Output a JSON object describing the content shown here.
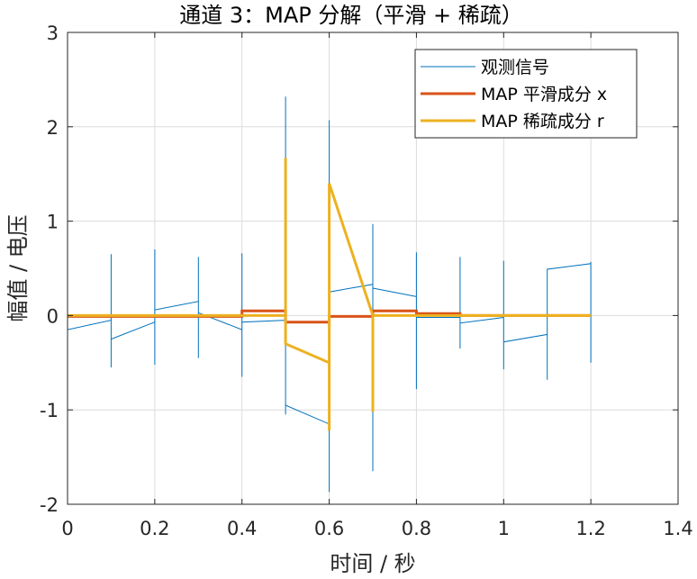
{
  "chart_data": {
    "type": "line",
    "title": "通道 3：MAP 分解（平滑 + 稀疏）",
    "xlabel": "时间 / 秒",
    "ylabel": "幅值 / 电压",
    "xlim": [
      0,
      1.4
    ],
    "ylim": [
      -2,
      3
    ],
    "xticks": [
      0,
      0.2,
      0.4,
      0.6,
      0.8,
      1,
      1.2,
      1.4
    ],
    "xtick_labels": [
      "0",
      "0.2",
      "0.4",
      "0.6",
      "0.8",
      "1",
      "1.2",
      "1.4"
    ],
    "yticks": [
      -2,
      -1,
      0,
      1,
      2,
      3
    ],
    "ytick_labels": [
      "-2",
      "-1",
      "0",
      "1",
      "2",
      "3"
    ],
    "grid": true,
    "legend_position": "top-right",
    "series": [
      {
        "name": "观测信号",
        "color": "#0072BD",
        "x": [
          0,
          0,
          0,
          0.1,
          0.1,
          0.1,
          0.1,
          0.2,
          0.2,
          0.2,
          0.2,
          0.3,
          0.3,
          0.3,
          0.3,
          0.4,
          0.4,
          0.4,
          0.4,
          0.5,
          0.5,
          0.5,
          0.5,
          0.6,
          0.6,
          0.6,
          0.6,
          0.7,
          0.7,
          0.7,
          0.7,
          0.8,
          0.8,
          0.8,
          0.8,
          0.9,
          0.9,
          0.9,
          0.9,
          1.0,
          1.0,
          1.0,
          1.0,
          1.1,
          1.1,
          1.1,
          1.1,
          1.2,
          1.2,
          1.2
        ],
        "y": [
          0.48,
          -0.68,
          -0.15,
          -0.05,
          0.65,
          -0.55,
          -0.25,
          -0.07,
          0.7,
          -0.52,
          0.06,
          0.15,
          0.62,
          -0.45,
          0.03,
          -0.15,
          0.66,
          -0.65,
          -0.07,
          -0.05,
          2.32,
          -1.05,
          -0.95,
          -1.15,
          2.07,
          -1.87,
          0.25,
          0.33,
          0.97,
          -1.65,
          0.29,
          0.2,
          0.67,
          -0.78,
          -0.02,
          -0.02,
          0.62,
          -0.35,
          -0.08,
          -0.02,
          0.58,
          -0.57,
          -0.28,
          -0.2,
          0.49,
          -0.68,
          0.49,
          0.55,
          0.57,
          -0.5
        ]
      },
      {
        "name": "MAP 平滑成分 x",
        "color": "#D95319",
        "x": [
          0,
          0.4,
          0.4,
          0.5,
          0.5,
          0.6,
          0.6,
          0.7,
          0.7,
          0.8,
          0.8,
          0.9,
          0.9,
          1.2
        ],
        "y": [
          -0.01,
          -0.01,
          0.05,
          0.05,
          -0.07,
          -0.07,
          -0.01,
          -0.01,
          0.05,
          0.05,
          0.02,
          0.02,
          0,
          0
        ]
      },
      {
        "name": "MAP 稀疏成分 r",
        "color": "#EDB120",
        "x": [
          0,
          0.5,
          0.5,
          0.5,
          0.6,
          0.6,
          0.6,
          0.7,
          0.7,
          0.7,
          1.2
        ],
        "y": [
          0,
          0,
          1.67,
          -0.3,
          -0.5,
          -1.22,
          1.4,
          0,
          -1.02,
          0,
          0
        ]
      }
    ]
  }
}
